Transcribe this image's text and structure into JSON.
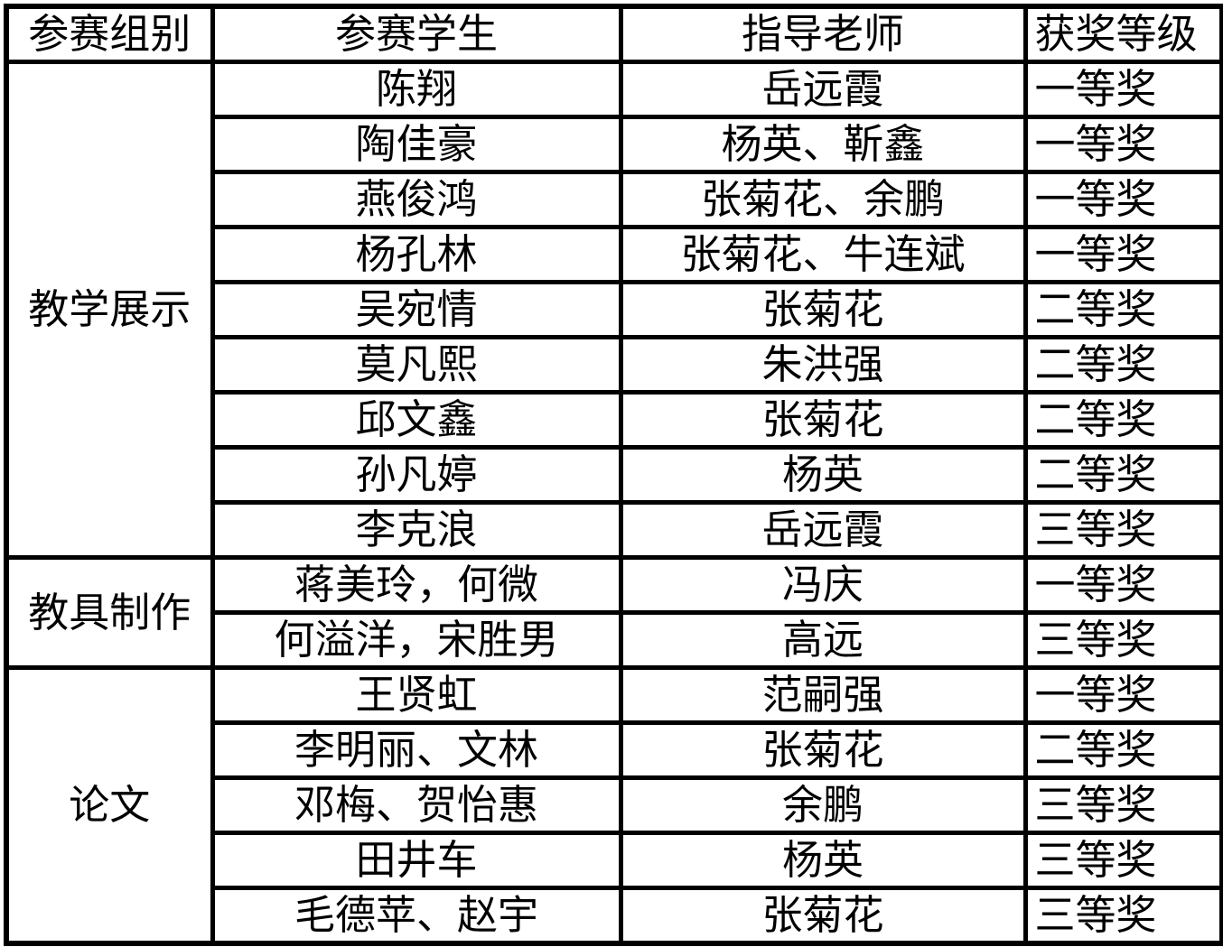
{
  "header": {
    "group": "参赛组别",
    "student": "参赛学生",
    "teacher": "指导老师",
    "award": "获奖等级"
  },
  "groups": [
    {
      "name": "教学展示",
      "rows": [
        {
          "student": "陈翔",
          "teacher": "岳远霞",
          "award": "一等奖"
        },
        {
          "student": "陶佳豪",
          "teacher": "杨英、靳鑫",
          "award": "一等奖"
        },
        {
          "student": "燕俊鸿",
          "teacher": "张菊花、余鹏",
          "award": "一等奖"
        },
        {
          "student": "杨孔林",
          "teacher": "张菊花、牛连斌",
          "award": "一等奖"
        },
        {
          "student": "吴宛情",
          "teacher": "张菊花",
          "award": "二等奖"
        },
        {
          "student": "莫凡熙",
          "teacher": "朱洪强",
          "award": "二等奖"
        },
        {
          "student": "邱文鑫",
          "teacher": "张菊花",
          "award": "二等奖"
        },
        {
          "student": "孙凡婷",
          "teacher": "杨英",
          "award": "二等奖"
        },
        {
          "student": "李克浪",
          "teacher": "岳远霞",
          "award": "三等奖"
        }
      ]
    },
    {
      "name": "教具制作",
      "rows": [
        {
          "student": "蒋美玲，何微",
          "teacher": "冯庆",
          "award": "一等奖"
        },
        {
          "student": "何溢洋，宋胜男",
          "teacher": "高远",
          "award": "三等奖"
        }
      ]
    },
    {
      "name": "论文",
      "rows": [
        {
          "student": "王贤虹",
          "teacher": "范嗣强",
          "award": "一等奖"
        },
        {
          "student": "李明丽、文林",
          "teacher": "张菊花",
          "award": "二等奖"
        },
        {
          "student": "邓梅、贺怡惠",
          "teacher": "余鹏",
          "award": "三等奖"
        },
        {
          "student": "田井车",
          "teacher": "杨英",
          "award": "三等奖"
        },
        {
          "student": "毛德苹、赵宇",
          "teacher": "张菊花",
          "award": "三等奖"
        }
      ]
    }
  ],
  "colors": {
    "border": "#000000",
    "background": "#ffffff",
    "text": "#000000"
  }
}
